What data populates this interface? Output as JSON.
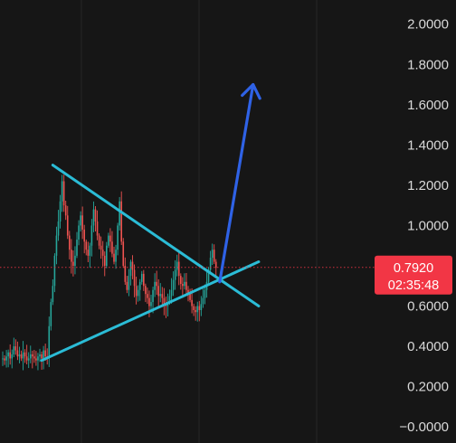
{
  "chart_data": {
    "type": "candlestick",
    "y_axis": {
      "position": "right",
      "ylim": [
        -0.08,
        2.12
      ],
      "ticks": [
        "2.0000",
        "1.8000",
        "1.6000",
        "1.4000",
        "1.2000",
        "1.0000",
        "0.6000",
        "0.4000",
        "0.2000",
        "−0.0000"
      ],
      "tick_values": [
        2.0,
        1.8,
        1.6,
        1.4,
        1.2,
        1.0,
        0.6,
        0.4,
        0.2,
        0.0
      ]
    },
    "grid": "vertical",
    "price_line": {
      "value": 0.792,
      "label": "0.7920",
      "countdown": "02:35:48",
      "color": "#f23645"
    },
    "colors": {
      "background": "#161616",
      "up": "#26a69a",
      "down": "#ef5350",
      "trendline": "#2bbcd6",
      "arrow": "#2f62e6",
      "grid": "#262626"
    },
    "candle_closes": [
      0.34,
      0.33,
      0.35,
      0.37,
      0.34,
      0.36,
      0.4,
      0.38,
      0.35,
      0.36,
      0.34,
      0.37,
      0.35,
      0.33,
      0.34,
      0.36,
      0.35,
      0.34,
      0.33,
      0.35,
      0.36,
      0.34,
      0.38,
      0.35,
      0.34,
      0.5,
      0.62,
      0.7,
      0.85,
      0.95,
      1.02,
      1.12,
      1.22,
      1.1,
      1.05,
      0.95,
      0.88,
      0.82,
      0.8,
      0.85,
      0.93,
      1.0,
      1.05,
      0.98,
      0.92,
      0.88,
      0.85,
      0.9,
      1.0,
      1.08,
      1.02,
      0.95,
      0.9,
      0.88,
      0.85,
      0.8,
      0.9,
      0.95,
      0.92,
      0.86,
      0.82,
      0.88,
      1.0,
      1.12,
      0.92,
      0.8,
      0.72,
      0.68,
      0.75,
      0.82,
      0.78,
      0.7,
      0.65,
      0.68,
      0.72,
      0.76,
      0.7,
      0.66,
      0.64,
      0.6,
      0.62,
      0.68,
      0.72,
      0.7,
      0.65,
      0.66,
      0.64,
      0.61,
      0.6,
      0.62,
      0.65,
      0.68,
      0.73,
      0.78,
      0.82,
      0.75,
      0.71,
      0.7,
      0.72,
      0.68,
      0.66,
      0.63,
      0.6,
      0.58,
      0.57,
      0.6,
      0.58,
      0.61,
      0.64,
      0.68,
      0.72,
      0.78,
      0.84,
      0.88,
      0.82,
      0.79
    ],
    "trendlines": [
      {
        "name": "descending",
        "from": {
          "bar": 27,
          "price": 1.3
        },
        "to": {
          "bar": 138,
          "price": 0.6
        }
      },
      {
        "name": "ascending",
        "from": {
          "bar": 21,
          "price": 0.33
        },
        "to": {
          "bar": 138,
          "price": 0.82
        }
      }
    ],
    "arrow": {
      "from": {
        "bar": 117,
        "price": 0.72
      },
      "to": {
        "bar": 135,
        "price": 1.7
      }
    }
  }
}
